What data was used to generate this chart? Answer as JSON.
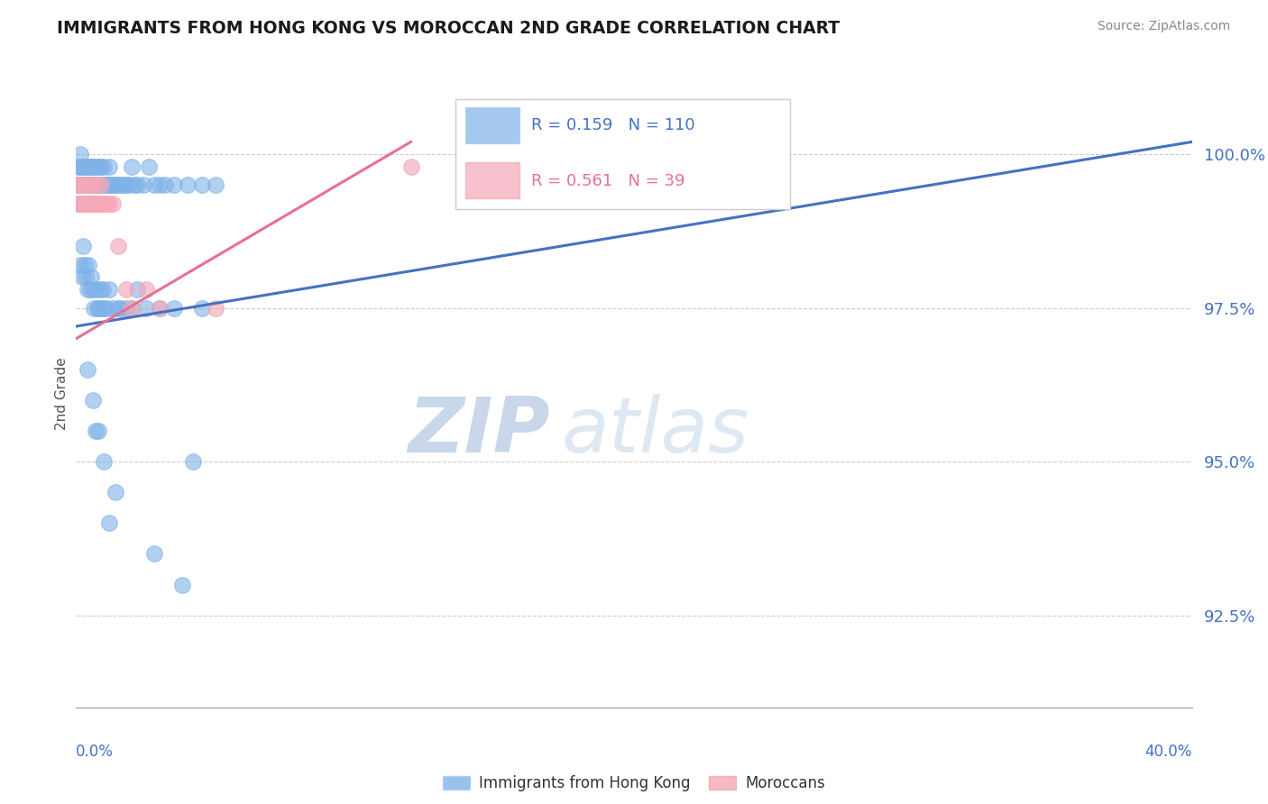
{
  "title": "IMMIGRANTS FROM HONG KONG VS MOROCCAN 2ND GRADE CORRELATION CHART",
  "source": "Source: ZipAtlas.com",
  "ylabel": "2nd Grade",
  "y_ticks": [
    92.5,
    95.0,
    97.5,
    100.0
  ],
  "y_tick_labels": [
    "92.5%",
    "95.0%",
    "97.5%",
    "100.0%"
  ],
  "xlim": [
    0.0,
    40.0
  ],
  "ylim": [
    91.0,
    101.2
  ],
  "blue_R": 0.159,
  "blue_N": 110,
  "pink_R": 0.561,
  "pink_N": 39,
  "blue_color": "#7FB3E8",
  "pink_color": "#F4A8B8",
  "blue_trend_color": "#4472C4",
  "pink_trend_color": "#E87090",
  "watermark_zip": "ZIP",
  "watermark_atlas": "atlas",
  "legend_label_blue": "Immigrants from Hong Kong",
  "legend_label_pink": "Moroccans",
  "title_color": "#1a1a1a",
  "tick_label_color": "#4472C4",
  "blue_x": [
    0.05,
    0.08,
    0.1,
    0.12,
    0.15,
    0.15,
    0.18,
    0.2,
    0.22,
    0.25,
    0.28,
    0.3,
    0.3,
    0.32,
    0.35,
    0.38,
    0.4,
    0.4,
    0.42,
    0.45,
    0.48,
    0.5,
    0.5,
    0.52,
    0.55,
    0.58,
    0.6,
    0.6,
    0.62,
    0.65,
    0.68,
    0.7,
    0.72,
    0.75,
    0.78,
    0.8,
    0.82,
    0.85,
    0.88,
    0.9,
    0.92,
    0.95,
    0.98,
    1.0,
    1.0,
    1.05,
    1.1,
    1.15,
    1.2,
    1.25,
    1.3,
    1.35,
    1.4,
    1.5,
    1.6,
    1.7,
    1.8,
    1.9,
    2.0,
    2.1,
    2.2,
    2.4,
    2.6,
    2.8,
    3.0,
    3.2,
    3.5,
    4.0,
    4.5,
    5.0,
    0.15,
    0.2,
    0.25,
    0.3,
    0.35,
    0.4,
    0.45,
    0.5,
    0.55,
    0.6,
    0.65,
    0.7,
    0.75,
    0.8,
    0.85,
    0.9,
    0.95,
    1.0,
    1.1,
    1.2,
    1.3,
    1.5,
    1.8,
    2.0,
    2.5,
    3.0,
    3.5,
    4.5,
    2.2,
    1.6,
    0.4,
    0.6,
    0.8,
    1.0,
    1.4,
    2.8,
    3.8,
    1.2,
    0.7,
    4.2
  ],
  "blue_y": [
    99.5,
    99.8,
    99.5,
    99.8,
    99.5,
    100.0,
    99.5,
    99.8,
    99.5,
    99.5,
    99.5,
    99.5,
    99.8,
    99.5,
    99.8,
    99.5,
    99.8,
    99.5,
    99.5,
    99.8,
    99.5,
    99.5,
    99.8,
    99.5,
    99.8,
    99.5,
    99.5,
    99.8,
    99.5,
    99.5,
    99.8,
    99.5,
    99.5,
    99.8,
    99.5,
    99.8,
    99.5,
    99.5,
    99.5,
    99.8,
    99.5,
    99.5,
    99.5,
    99.8,
    99.5,
    99.5,
    99.5,
    99.5,
    99.8,
    99.5,
    99.5,
    99.5,
    99.5,
    99.5,
    99.5,
    99.5,
    99.5,
    99.5,
    99.8,
    99.5,
    99.5,
    99.5,
    99.8,
    99.5,
    99.5,
    99.5,
    99.5,
    99.5,
    99.5,
    99.5,
    98.2,
    98.0,
    98.5,
    98.2,
    98.0,
    97.8,
    98.2,
    97.8,
    98.0,
    97.8,
    97.5,
    97.8,
    97.5,
    97.5,
    97.8,
    97.5,
    97.8,
    97.5,
    97.5,
    97.8,
    97.5,
    97.5,
    97.5,
    97.5,
    97.5,
    97.5,
    97.5,
    97.5,
    97.8,
    97.5,
    96.5,
    96.0,
    95.5,
    95.0,
    94.5,
    93.5,
    93.0,
    94.0,
    95.5,
    95.0
  ],
  "pink_x": [
    0.05,
    0.08,
    0.1,
    0.12,
    0.15,
    0.18,
    0.2,
    0.22,
    0.25,
    0.28,
    0.3,
    0.32,
    0.35,
    0.38,
    0.4,
    0.42,
    0.45,
    0.48,
    0.5,
    0.55,
    0.6,
    0.65,
    0.7,
    0.75,
    0.8,
    0.85,
    0.9,
    0.95,
    1.0,
    1.1,
    1.2,
    1.3,
    1.5,
    1.8,
    2.0,
    2.5,
    3.0,
    5.0,
    12.0
  ],
  "pink_y": [
    99.2,
    99.5,
    99.2,
    99.5,
    99.2,
    99.2,
    99.5,
    99.2,
    99.5,
    99.2,
    99.2,
    99.5,
    99.2,
    99.2,
    99.5,
    99.2,
    99.2,
    99.5,
    99.2,
    99.2,
    99.5,
    99.2,
    99.2,
    99.5,
    99.2,
    99.2,
    99.5,
    99.2,
    99.2,
    99.2,
    99.2,
    99.2,
    98.5,
    97.8,
    97.5,
    97.8,
    97.5,
    97.5,
    99.8
  ]
}
